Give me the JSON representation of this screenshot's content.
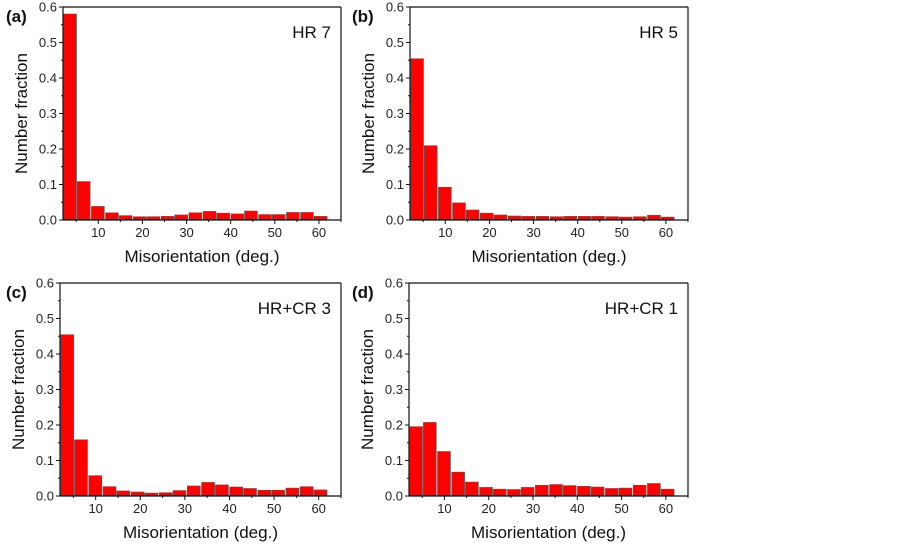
{
  "chart_data": [
    {
      "type": "bar",
      "panel_label": "(a)",
      "annotation": "HR 7",
      "xlabel": "Misorientation (deg.)",
      "ylabel": "Number fraction",
      "xlim": [
        2,
        65
      ],
      "ylim": [
        0,
        0.6
      ],
      "xticks": [
        "10",
        "20",
        "30",
        "40",
        "50",
        "60"
      ],
      "yticks": [
        "0.0",
        "0.1",
        "0.2",
        "0.3",
        "0.4",
        "0.5",
        "0.6"
      ],
      "x": [
        3.6,
        6.7,
        9.9,
        13.1,
        16.2,
        19.4,
        22.5,
        25.7,
        28.8,
        32.0,
        35.2,
        38.3,
        41.5,
        44.6,
        47.8,
        50.9,
        54.1,
        57.3,
        60.4
      ],
      "values": [
        0.58,
        0.108,
        0.038,
        0.02,
        0.012,
        0.009,
        0.009,
        0.01,
        0.014,
        0.02,
        0.024,
        0.019,
        0.017,
        0.025,
        0.015,
        0.015,
        0.021,
        0.021,
        0.01
      ]
    },
    {
      "type": "bar",
      "panel_label": "(b)",
      "annotation": "HR 5",
      "xlabel": "Misorientation (deg.)",
      "ylabel": "Number fraction",
      "xlim": [
        2,
        65
      ],
      "ylim": [
        0,
        0.6
      ],
      "xticks": [
        "10",
        "20",
        "30",
        "40",
        "50",
        "60"
      ],
      "yticks": [
        "0.0",
        "0.1",
        "0.2",
        "0.3",
        "0.4",
        "0.5",
        "0.6"
      ],
      "x": [
        3.6,
        6.7,
        9.9,
        13.1,
        16.2,
        19.4,
        22.5,
        25.7,
        28.8,
        32.0,
        35.2,
        38.3,
        41.5,
        44.6,
        47.8,
        50.9,
        54.1,
        57.3,
        60.4
      ],
      "values": [
        0.454,
        0.209,
        0.092,
        0.048,
        0.028,
        0.019,
        0.014,
        0.011,
        0.01,
        0.01,
        0.009,
        0.01,
        0.01,
        0.01,
        0.009,
        0.008,
        0.009,
        0.013,
        0.008
      ]
    },
    {
      "type": "bar",
      "panel_label": "(c)",
      "annotation": "HR+CR 3",
      "xlabel": "Misorientation (deg.)",
      "ylabel": "Number fraction",
      "xlim": [
        2,
        65
      ],
      "ylim": [
        0,
        0.6
      ],
      "xticks": [
        "10",
        "20",
        "30",
        "40",
        "50",
        "60"
      ],
      "yticks": [
        "0.0",
        "0.1",
        "0.2",
        "0.3",
        "0.4",
        "0.5",
        "0.6"
      ],
      "x": [
        3.6,
        6.7,
        9.9,
        13.1,
        16.2,
        19.4,
        22.5,
        25.7,
        28.8,
        32.0,
        35.2,
        38.3,
        41.5,
        44.6,
        47.8,
        50.9,
        54.1,
        57.3,
        60.4
      ],
      "values": [
        0.454,
        0.158,
        0.057,
        0.026,
        0.014,
        0.011,
        0.008,
        0.009,
        0.015,
        0.028,
        0.038,
        0.031,
        0.025,
        0.021,
        0.016,
        0.016,
        0.022,
        0.026,
        0.017
      ]
    },
    {
      "type": "bar",
      "panel_label": "(d)",
      "annotation": "HR+CR 1",
      "xlabel": "Misorientation (deg.)",
      "ylabel": "Number fraction",
      "xlim": [
        2,
        65
      ],
      "ylim": [
        0,
        0.6
      ],
      "xticks": [
        "10",
        "20",
        "30",
        "40",
        "50",
        "60"
      ],
      "yticks": [
        "0.0",
        "0.1",
        "0.2",
        "0.3",
        "0.4",
        "0.5",
        "0.6"
      ],
      "x": [
        3.6,
        6.7,
        9.9,
        13.1,
        16.2,
        19.4,
        22.5,
        25.7,
        28.8,
        32.0,
        35.2,
        38.3,
        41.5,
        44.6,
        47.8,
        50.9,
        54.1,
        57.3,
        60.4
      ],
      "values": [
        0.195,
        0.207,
        0.125,
        0.067,
        0.039,
        0.024,
        0.019,
        0.018,
        0.024,
        0.03,
        0.032,
        0.029,
        0.027,
        0.025,
        0.021,
        0.022,
        0.03,
        0.035,
        0.019
      ]
    }
  ],
  "colors": {
    "bar_fill": "#ff0000",
    "bar_stroke": "#555555",
    "axis": "#111111"
  }
}
